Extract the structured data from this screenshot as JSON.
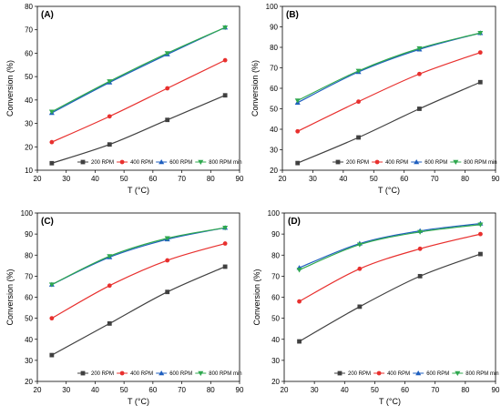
{
  "chart_data": [
    {
      "panel": "(A)",
      "type": "line",
      "xlabel": "T (°C)",
      "ylabel": "Conversion (%)",
      "xlim": [
        20,
        90
      ],
      "ylim": [
        10,
        80
      ],
      "xticks": [
        20,
        30,
        40,
        50,
        60,
        70,
        80,
        90
      ],
      "yticks": [
        10,
        20,
        30,
        40,
        50,
        60,
        70,
        80
      ],
      "x": [
        25,
        45,
        65,
        85
      ],
      "legend": "bottom",
      "series": [
        {
          "name": "200 RPM",
          "color": "#404040",
          "marker": "square",
          "values": [
            13,
            21,
            31.5,
            42
          ]
        },
        {
          "name": "400 RPM",
          "color": "#e8302e",
          "marker": "circle",
          "values": [
            22,
            33,
            45,
            57
          ]
        },
        {
          "name": "600 RPM",
          "color": "#1f5fbf",
          "marker": "triangle-up",
          "values": [
            34.5,
            47.5,
            59.5,
            71
          ]
        },
        {
          "name": "800 RPM min",
          "color": "#2fa84f",
          "marker": "triangle-down",
          "values": [
            35,
            48,
            60,
            71
          ]
        }
      ]
    },
    {
      "panel": "(B)",
      "type": "line",
      "xlabel": "T (°C)",
      "ylabel": "Conversion (%)",
      "xlim": [
        20,
        90
      ],
      "ylim": [
        20,
        100
      ],
      "xticks": [
        20,
        30,
        40,
        50,
        60,
        70,
        80,
        90
      ],
      "yticks": [
        20,
        30,
        40,
        50,
        60,
        70,
        80,
        90,
        100
      ],
      "x": [
        25,
        45,
        65,
        85
      ],
      "legend": "bottom",
      "series": [
        {
          "name": "200 RPM",
          "color": "#404040",
          "marker": "square",
          "values": [
            23.5,
            36,
            50,
            63
          ]
        },
        {
          "name": "400 RPM",
          "color": "#e8302e",
          "marker": "circle",
          "values": [
            39,
            53.5,
            67,
            77.5
          ]
        },
        {
          "name": "600 RPM",
          "color": "#1f5fbf",
          "marker": "triangle-up",
          "values": [
            53,
            68,
            79,
            87
          ]
        },
        {
          "name": "800 RPM min",
          "color": "#2fa84f",
          "marker": "triangle-down",
          "values": [
            54,
            68.5,
            79.5,
            87
          ]
        }
      ]
    },
    {
      "panel": "(C)",
      "type": "line",
      "xlabel": "T (°C)",
      "ylabel": "Conversion (%)",
      "xlim": [
        20,
        90
      ],
      "ylim": [
        20,
        100
      ],
      "xticks": [
        20,
        30,
        40,
        50,
        60,
        70,
        80,
        90
      ],
      "yticks": [
        20,
        30,
        40,
        50,
        60,
        70,
        80,
        90,
        100
      ],
      "x": [
        25,
        45,
        65,
        85
      ],
      "legend": "bottom",
      "series": [
        {
          "name": "200 RPM",
          "color": "#404040",
          "marker": "square",
          "values": [
            32.5,
            47.5,
            62.5,
            74.5
          ]
        },
        {
          "name": "400 RPM",
          "color": "#e8302e",
          "marker": "circle",
          "values": [
            50,
            65.5,
            77.5,
            85.5
          ]
        },
        {
          "name": "600 RPM",
          "color": "#1f5fbf",
          "marker": "triangle-up",
          "values": [
            66,
            79,
            87.5,
            93
          ]
        },
        {
          "name": "800 RPM min",
          "color": "#2fa84f",
          "marker": "triangle-down",
          "values": [
            66,
            79.5,
            88,
            93
          ]
        }
      ]
    },
    {
      "panel": "(D)",
      "type": "line",
      "xlabel": "T (°C)",
      "ylabel": "Conversion (%)",
      "xlim": [
        20,
        90
      ],
      "ylim": [
        20,
        100
      ],
      "xticks": [
        20,
        30,
        40,
        50,
        60,
        70,
        80,
        90
      ],
      "yticks": [
        20,
        30,
        40,
        50,
        60,
        70,
        80,
        90,
        100
      ],
      "x": [
        25,
        45,
        65,
        85
      ],
      "legend": "bottom",
      "series": [
        {
          "name": "200 RPM",
          "color": "#404040",
          "marker": "square",
          "values": [
            39,
            55.5,
            70,
            80.5
          ]
        },
        {
          "name": "400 RPM",
          "color": "#e8302e",
          "marker": "circle",
          "values": [
            58,
            73.5,
            83,
            90
          ]
        },
        {
          "name": "600 RPM",
          "color": "#1f5fbf",
          "marker": "triangle-up",
          "values": [
            74,
            85.5,
            91.5,
            95
          ]
        },
        {
          "name": "800 RPM min",
          "color": "#2fa84f",
          "marker": "triangle-down",
          "values": [
            73,
            85,
            91,
            94.5
          ]
        }
      ]
    }
  ]
}
